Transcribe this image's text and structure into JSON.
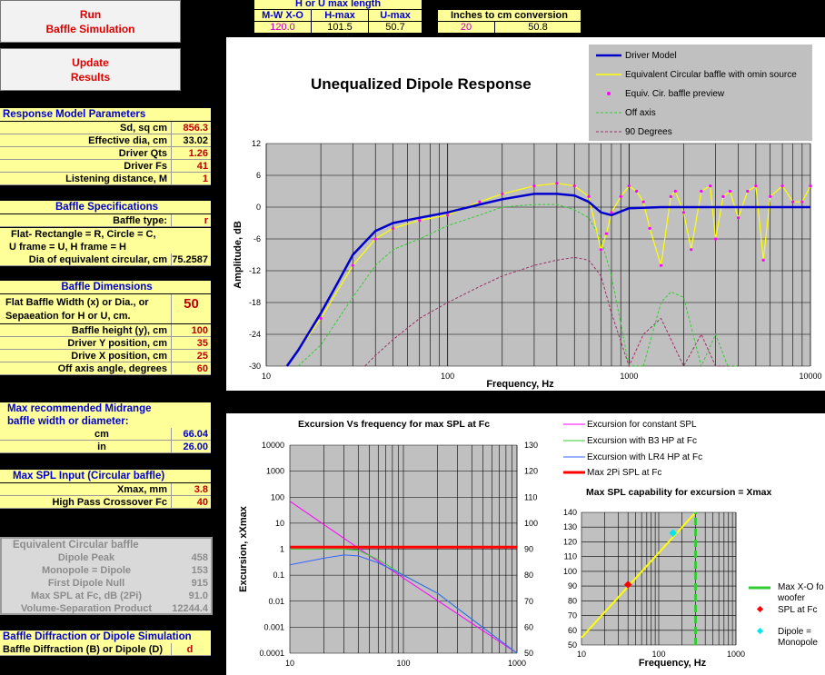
{
  "buttons": {
    "run": [
      "Run",
      "Baffle Simulation"
    ],
    "update": [
      "Update",
      "Results"
    ]
  },
  "top": {
    "hu_title": "H or U max length",
    "headers": [
      "M-W  X-O Hz",
      "H-max",
      "U-max"
    ],
    "values": [
      "120.0",
      "101.5",
      "50.7"
    ],
    "conv_title": "Inches to cm conversion",
    "conv_values": [
      "20",
      "50.8"
    ]
  },
  "response": {
    "title": "Response Model Parameters",
    "rows": [
      {
        "label": "Sd, sq cm",
        "value": "856.3"
      },
      {
        "label": "Effective dia, cm",
        "value": "33.02"
      },
      {
        "label": "Driver Qts",
        "value": "1.26"
      },
      {
        "label": "Driver Fs",
        "value": "41"
      },
      {
        "label": "Listening distance, M",
        "value": "1"
      }
    ]
  },
  "baffle_spec": {
    "title": "Baffle Specifications",
    "type_label": "Baffle type:",
    "type_value": "r",
    "note1": "Flat- Rectangle = R, Circle = C,",
    "note2": "U frame = U, H frame = H",
    "dia_label": "Dia of equivalent circular, cm",
    "dia_value": "75.2587"
  },
  "baffle_dim": {
    "title": "Baffle Dimensions",
    "width_label1": "Flat Baffle Width (x) or Dia., or",
    "width_label2": "Sepaeation for H or U, cm.",
    "width_value": "50",
    "rows": [
      {
        "label": "Baffle height (y), cm",
        "value": "100"
      },
      {
        "label": "Driver Y position, cm",
        "value": "35"
      },
      {
        "label": "Drive X position, cm",
        "value": "25"
      },
      {
        "label": "Off axis angle, degrees",
        "value": "60"
      }
    ]
  },
  "midrange": {
    "title1": "Max recommended Midrange",
    "title2": "baffle width or diameter:",
    "rows": [
      {
        "label": "cm",
        "value": "66.04"
      },
      {
        "label": "in",
        "value": "26.00"
      }
    ]
  },
  "maxspl": {
    "title": "Max SPL Input (Circular baffle)",
    "rows": [
      {
        "label": "Xmax, mm",
        "value": "3.8"
      },
      {
        "label": "High Pass Crossover Fc",
        "value": "40"
      }
    ]
  },
  "equiv": {
    "title": "Equivalent  Circular  baffle",
    "rows": [
      {
        "label": "Dipole Peak",
        "value": "458"
      },
      {
        "label": "Monopole = Dipole",
        "value": "153"
      },
      {
        "label": "First Dipole Null",
        "value": "915"
      },
      {
        "label": "Max SPL at Fc, dB (2Pi)",
        "value": "91.0"
      },
      {
        "label": "Volume-Separation Product",
        "value": "12244.4"
      }
    ]
  },
  "simulation": {
    "title": "Baffle Diffraction  or Dipole Simulation",
    "label": "Baffle Diffraction (B) or Dipole (D)",
    "value": "d"
  },
  "colors": {
    "driver": "#0000cc",
    "equiv": "#ffff00",
    "preview": "#ff00ff",
    "offaxis": "#33cc33",
    "deg90": "#993366",
    "maxspl": "#ff0000",
    "lr4": "#3366ff"
  },
  "chart_data": [
    {
      "type": "line",
      "title": "Unequalized Dipole Response",
      "xlabel": "Frequency, Hz",
      "ylabel": "Amplitude, dB",
      "x_scale": "log",
      "xlim": [
        10,
        10000
      ],
      "ylim": [
        -30,
        12
      ],
      "x_ticks": [
        "10",
        "100",
        "1000",
        "10000"
      ],
      "y_ticks": [
        "12",
        "6",
        "0",
        "-6",
        "-12",
        "-18",
        "-24",
        "-30"
      ],
      "legend": [
        "Driver Model",
        "Equivalent Circular baffle with omin source",
        "Equiv. Cir. baffle preview",
        "Off axis",
        "90 Degrees"
      ],
      "legend_position": "top-right",
      "series": [
        {
          "name": "Driver Model",
          "x": [
            13,
            15,
            20,
            25,
            30,
            40,
            50,
            70,
            100,
            150,
            200,
            300,
            400,
            500,
            600,
            700,
            800,
            1000,
            1500,
            2000,
            5000,
            10000
          ],
          "y": [
            -30,
            -27,
            -20,
            -14,
            -9,
            -4.5,
            -3,
            -2,
            -1,
            0.5,
            1.5,
            2.5,
            2.5,
            2.2,
            1,
            -1,
            -1.5,
            -0.2,
            0,
            0,
            0,
            0
          ]
        },
        {
          "name": "Equivalent Circular baffle with omin source",
          "x": [
            13,
            20,
            30,
            40,
            50,
            70,
            100,
            150,
            200,
            300,
            400,
            500,
            600,
            700,
            750,
            800,
            900,
            1000,
            1100,
            1200,
            1300,
            1500,
            1700,
            1800,
            2000,
            2200,
            2500,
            2800,
            3000,
            3300,
            3600,
            4000,
            4500,
            5000,
            5500,
            6000,
            7000,
            8000,
            9000,
            10000
          ],
          "y": [
            -30,
            -21,
            -11,
            -6,
            -4,
            -2.5,
            -1.5,
            1,
            2.5,
            4,
            4.5,
            4,
            2,
            -8,
            -5,
            -1,
            2,
            4,
            3,
            1,
            -4,
            -11,
            2,
            3,
            -1,
            -8,
            3,
            4,
            -6,
            2,
            3,
            -2,
            3,
            4,
            -10,
            2,
            4,
            1,
            1,
            4
          ]
        },
        {
          "name": "Off axis",
          "x": [
            15,
            20,
            30,
            40,
            50,
            70,
            100,
            150,
            200,
            300,
            400,
            500,
            600,
            700,
            800,
            900,
            1000,
            1200,
            1500,
            1700,
            2000,
            2500,
            3000,
            3500,
            4000
          ],
          "y": [
            -30,
            -26,
            -17,
            -11,
            -8,
            -6,
            -3.5,
            -1.5,
            0,
            0.5,
            0.5,
            -0.5,
            -2,
            -6,
            -13,
            -22,
            -30,
            -30,
            -18,
            -16,
            -17,
            -30,
            -24,
            -30,
            -30
          ]
        },
        {
          "name": "90 Degrees",
          "x": [
            35,
            40,
            50,
            70,
            100,
            150,
            200,
            300,
            400,
            500,
            600,
            700,
            800,
            1000,
            1200,
            1500,
            2000,
            2500,
            3000,
            4000
          ],
          "y": [
            -30,
            -28,
            -25,
            -21,
            -18,
            -15,
            -13,
            -11,
            -10,
            -9.5,
            -10,
            -13,
            -20,
            -30,
            -24,
            -21,
            -30,
            -24,
            -30,
            -30
          ]
        }
      ]
    },
    {
      "type": "line",
      "title": "Excursion Vs frequency  for max SPL  at Fc",
      "ylabel": "Excursion, xXmax",
      "x_scale": "log",
      "y_scale": "log",
      "xlim": [
        10,
        1000
      ],
      "ylim": [
        0.0001,
        10000
      ],
      "y2lim": [
        50,
        130
      ],
      "x_ticks": [
        "10",
        "100",
        "1000"
      ],
      "y_ticks": [
        "10000",
        "1000",
        "100",
        "10",
        "1",
        "0.1",
        "0.01",
        "0.001",
        "0.0001"
      ],
      "y2_ticks": [
        "130",
        "120",
        "110",
        "100",
        "90",
        "80",
        "70",
        "60",
        "50"
      ],
      "legend": [
        "Excursion for constant SPL",
        "Excursion with B3 HP at Fc",
        "Excursion with LR4 HP at Fc",
        "Max 2Pi SPL at Fc"
      ],
      "series": [
        {
          "name": "Excursion for constant SPL",
          "x": [
            10,
            40,
            1000
          ],
          "y": [
            70,
            1.1,
            0.0001
          ]
        },
        {
          "name": "Excursion with B3 HP at Fc",
          "x": [
            10,
            20,
            30,
            40,
            60,
            100,
            200,
            1000
          ],
          "y": [
            1,
            1,
            1,
            0.9,
            0.4,
            0.1,
            0.02,
            0.0001
          ]
        },
        {
          "name": "Excursion with LR4 HP at Fc",
          "x": [
            10,
            20,
            30,
            40,
            60,
            100,
            200,
            1000
          ],
          "y": [
            0.25,
            0.45,
            0.6,
            0.55,
            0.3,
            0.1,
            0.02,
            0.0001
          ]
        },
        {
          "name": "Max 2Pi SPL at Fc",
          "x": [
            10,
            1000
          ],
          "y": [
            1.2,
            1.2
          ]
        }
      ]
    },
    {
      "type": "line",
      "title": "Max SPL  capability for excursion  = Xmax",
      "xlabel": "Frequency, Hz",
      "x_scale": "log",
      "xlim": [
        10,
        1000
      ],
      "ylim": [
        50,
        140
      ],
      "x_ticks": [
        "10",
        "100",
        "1000"
      ],
      "y_ticks": [
        "140",
        "130",
        "120",
        "110",
        "100",
        "90",
        "80",
        "70",
        "60",
        "50"
      ],
      "legend": [
        "Max X-O for woofer",
        "SPL at Fc",
        "Dipole = Monopole"
      ],
      "series": [
        {
          "name": "",
          "x": [
            10,
            300
          ],
          "y": [
            55,
            140
          ]
        },
        {
          "name": "Max X-O for woofer",
          "x": [
            300,
            300
          ],
          "y": [
            50,
            140
          ]
        },
        {
          "name": "SPL at Fc",
          "x": [
            40
          ],
          "y": [
            91
          ]
        },
        {
          "name": "Dipole = Monopole",
          "x": [
            153
          ],
          "y": [
            126
          ]
        }
      ]
    }
  ],
  "legend_right": {
    "line1": "Max X-O fo",
    "line2": "woofer",
    "spl": "SPL at Fc",
    "dip1": "Dipole  =",
    "dip2": "Monopole"
  }
}
